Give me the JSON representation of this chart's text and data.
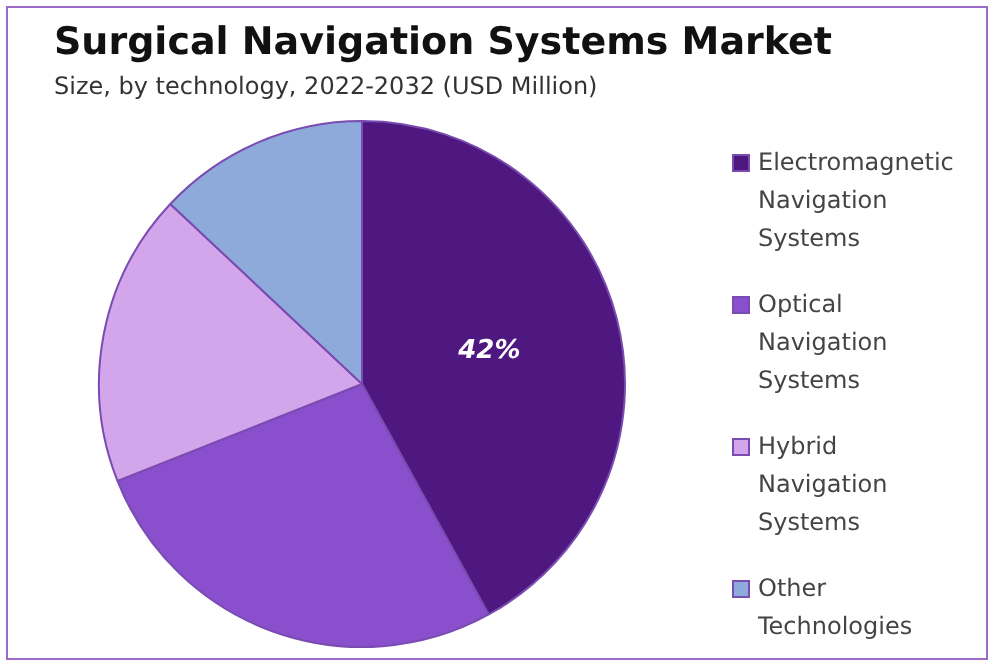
{
  "chart_data": {
    "type": "pie",
    "title": "Surgical Navigation Systems Market",
    "subtitle": "Size, by technology, 2022-2032 (USD Million)",
    "categories": [
      "Electromagnetic Navigation Systems",
      "Optical Navigation Systems",
      "Hybrid Navigation Systems",
      "Other Technologies"
    ],
    "values": [
      42,
      27,
      18,
      13
    ],
    "colors": [
      "#4f1780",
      "#8a4fcc",
      "#d3a6ec",
      "#8eaadb"
    ],
    "value_labels": [
      "42%",
      null,
      null,
      null
    ],
    "legend": "right"
  }
}
